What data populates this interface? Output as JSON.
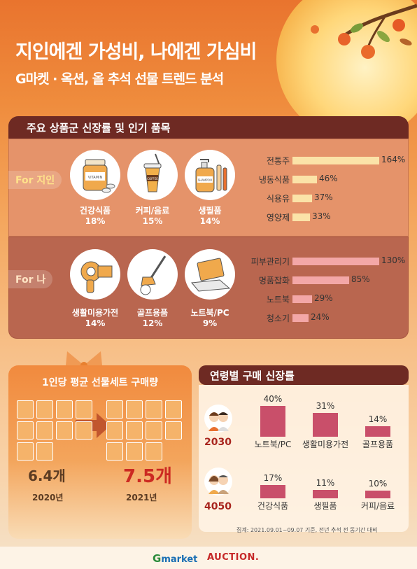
{
  "header": {
    "title": "지인에겐 가성비, 나에겐 가심비",
    "subtitle": "G마켓 · 옥션, 올 추석 선물 트렌드 분석"
  },
  "section1": {
    "title": "주요 상품군 신장률 및 인기 품목",
    "for_others": {
      "label": "For 지인",
      "items": [
        {
          "name": "건강식품",
          "pct": "18%",
          "icon": "vitamin-bottle-icon",
          "icon_text": "VITAMIN"
        },
        {
          "name": "커피/음료",
          "pct": "15%",
          "icon": "coffee-cup-icon",
          "icon_text": "COFFEE"
        },
        {
          "name": "생필품",
          "pct": "14%",
          "icon": "shampoo-bottle-icon",
          "icon_text": "SHAMPOO"
        }
      ]
    },
    "for_me": {
      "label": "For 나",
      "items": [
        {
          "name": "생활미용가전",
          "pct": "14%",
          "icon": "hair-dryer-icon"
        },
        {
          "name": "골프용품",
          "pct": "12%",
          "icon": "golf-club-icon"
        },
        {
          "name": "노트북/PC",
          "pct": "9%",
          "icon": "laptop-icon"
        }
      ]
    }
  },
  "section2": {
    "title": "1인당 평균 선물세트 구매량",
    "before": {
      "value": "6.4개",
      "year": "2020년",
      "boxes": 10
    },
    "after": {
      "value": "7.5개",
      "year": "2021년",
      "boxes": 11
    }
  },
  "section3": {
    "title": "연령별 구매 신장률",
    "groups": [
      {
        "age": "2030",
        "icon": "young-couple-icon"
      },
      {
        "age": "4050",
        "icon": "middle-aged-couple-icon"
      }
    ]
  },
  "note": "집계: 2021.09.01~09.07 기준, 전년 추석 전 동기간 대비",
  "footer": {
    "logo_g": "G",
    "logo_market": "market",
    "logo_auction": "AUCTION."
  },
  "colors": {
    "bar_others": "#fbe3a8",
    "bar_me": "#f3a7a7",
    "age_bar": "#c94f6a",
    "dark_header": "#6e2a23"
  },
  "chart_data": [
    {
      "type": "bar",
      "orientation": "horizontal",
      "categories": [
        "전통주",
        "냉동식품",
        "식용유",
        "영양제"
      ],
      "values": [
        164,
        46,
        37,
        33
      ],
      "labels": [
        "164%",
        "46%",
        "37%",
        "33%"
      ]
    },
    {
      "type": "bar",
      "orientation": "horizontal",
      "categories": [
        "피부관리기",
        "명품잡화",
        "노트북",
        "청소기"
      ],
      "values": [
        130,
        85,
        29,
        24
      ],
      "labels": [
        "130%",
        "85%",
        "29%",
        "24%"
      ]
    },
    {
      "type": "bar",
      "categories": [
        "노트북/PC",
        "생활미용가전",
        "골프용품"
      ],
      "values": [
        40,
        31,
        14
      ],
      "labels": [
        "40%",
        "31%",
        "14%"
      ]
    },
    {
      "type": "bar",
      "categories": [
        "건강식품",
        "생필품",
        "커피/음료"
      ],
      "values": [
        17,
        11,
        10
      ],
      "labels": [
        "17%",
        "11%",
        "10%"
      ]
    }
  ]
}
